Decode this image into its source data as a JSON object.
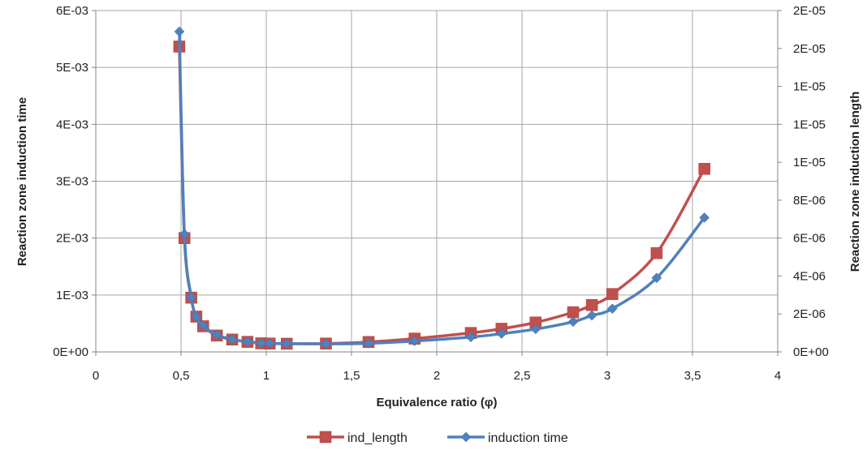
{
  "chart_data": {
    "type": "line",
    "xlabel": "Equivalence ratio (φ)",
    "ylabel_left": "Reaction zone induction time",
    "ylabel_right": "Reaction zone induction length",
    "xlim": [
      0,
      4
    ],
    "ylim_left": [
      0,
      0.006
    ],
    "ylim_right": [
      0,
      1.8e-05
    ],
    "x_ticks": [
      "0",
      "0,5",
      "1",
      "1,5",
      "2",
      "2,5",
      "3",
      "3,5",
      "4"
    ],
    "x_tick_values": [
      0,
      0.5,
      1,
      1.5,
      2,
      2.5,
      3,
      3.5,
      4
    ],
    "y_left_ticks": [
      "0E+00",
      "1E-03",
      "2E-03",
      "3E-03",
      "4E-03",
      "5E-03",
      "6E-03"
    ],
    "y_right_ticks": [
      "0E+00",
      "2E-06",
      "4E-06",
      "6E-06",
      "8E-06",
      "1E-05",
      "1E-05",
      "1E-05",
      "2E-05",
      "2E-05"
    ],
    "grid": true,
    "legend_position": "bottom",
    "series": [
      {
        "name": "ind_length",
        "axis": "right",
        "color": "#c0504d",
        "marker": "square",
        "x": [
          0.49,
          0.52,
          0.56,
          0.59,
          0.63,
          0.71,
          0.8,
          0.89,
          0.97,
          1.02,
          1.12,
          1.35,
          1.6,
          1.87,
          2.2,
          2.38,
          2.58,
          2.8,
          2.91,
          3.03,
          3.29,
          3.57
        ],
        "values": [
          1.61e-05,
          6e-06,
          2.86e-06,
          1.86e-06,
          1.35e-06,
          8.6e-07,
          6.5e-07,
          5.3e-07,
          4.5e-07,
          4.4e-07,
          4.3e-07,
          4.4e-07,
          5.2e-07,
          7e-07,
          1e-06,
          1.22e-06,
          1.55e-06,
          2.09e-06,
          2.47e-06,
          3.05e-06,
          5.21e-06,
          9.65e-06
        ]
      },
      {
        "name": "induction time",
        "axis": "left",
        "color": "#4f81bd",
        "marker": "diamond",
        "x": [
          0.49,
          0.52,
          0.56,
          0.59,
          0.63,
          0.71,
          0.8,
          0.89,
          0.97,
          1.02,
          1.12,
          1.35,
          1.6,
          1.87,
          2.2,
          2.38,
          2.58,
          2.8,
          2.91,
          3.03,
          3.29,
          3.57
        ],
        "values": [
          0.00563,
          0.00207,
          0.00096,
          0.00062,
          0.00046,
          0.0003,
          0.00022,
          0.00018,
          0.000155,
          0.00015,
          0.000145,
          0.00014,
          0.00015,
          0.00019,
          0.00026,
          0.00032,
          0.0004,
          0.00053,
          0.00064,
          0.00076,
          0.0013,
          0.00236
        ]
      }
    ]
  }
}
